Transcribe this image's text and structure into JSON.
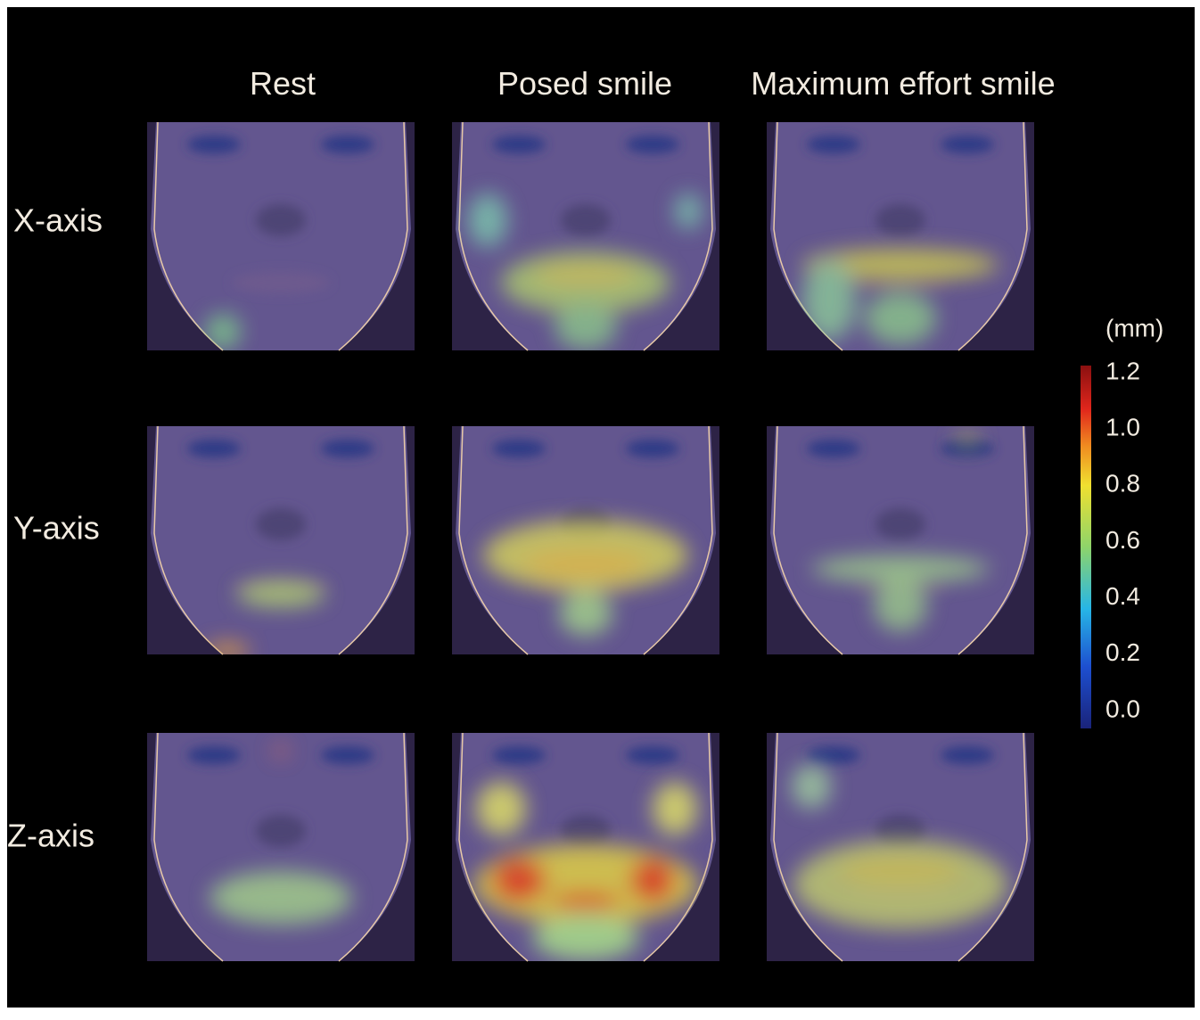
{
  "columns": [
    "Rest",
    "Posed smile",
    "Maximum effort smile"
  ],
  "rows": [
    "X-axis",
    "Y-axis",
    "Z-axis"
  ],
  "colorbar": {
    "unit": "(mm)",
    "range": [
      0,
      1.2
    ],
    "ticks": [
      {
        "value": 0,
        "label": "0.0"
      },
      {
        "value": 0.2,
        "label": "0.2"
      },
      {
        "value": 0.4,
        "label": "0.4"
      },
      {
        "value": 0.6,
        "label": "0.6"
      },
      {
        "value": 0.8,
        "label": "0.8"
      },
      {
        "value": 1,
        "label": "1.0"
      },
      {
        "value": 1.2,
        "label": "1.2"
      }
    ]
  }
}
